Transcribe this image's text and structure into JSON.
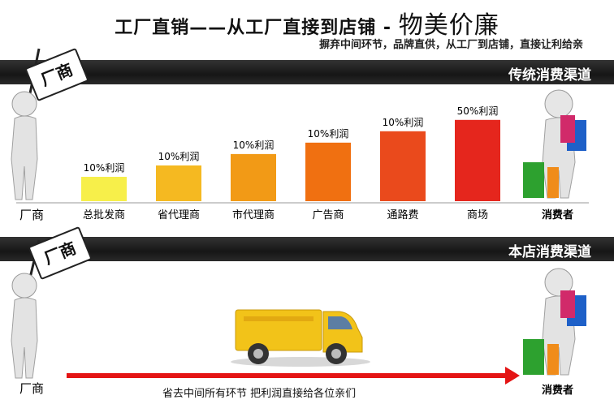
{
  "header": {
    "title_main": "工厂直销——从工厂直接到店铺 - ",
    "title_emphasis": "物美价廉",
    "subtitle": "摒弃中间环节，品牌直供，从工厂到店铺，直接让利给亲"
  },
  "traditional": {
    "band_label": "传统消费渠道",
    "factory_sign": "厂商",
    "factory_label": "厂商",
    "consumer_label": "消费者"
  },
  "direct": {
    "band_label": "本店消费渠道",
    "factory_sign": "厂商",
    "factory_label": "厂商",
    "consumer_label": "消费者",
    "arrow_text": "省去中间所有环节 把利润直接给各位亲们"
  },
  "chart_data": {
    "type": "bar",
    "title": "传统消费渠道",
    "categories": [
      "总批发商",
      "省代理商",
      "市代理商",
      "广告商",
      "通路费",
      "商场"
    ],
    "series": [
      {
        "values": [
          10,
          10,
          10,
          10,
          10,
          50
        ]
      }
    ],
    "data_labels": [
      "10%利润",
      "10%利润",
      "10%利润",
      "10%利润",
      "10%利润",
      "50%利润"
    ],
    "bar_colors": [
      "#f7ef4a",
      "#f5b921",
      "#f29a16",
      "#f07011",
      "#ea4a1c",
      "#e5261d"
    ]
  },
  "colors": {
    "band": "#1b1b1b",
    "arrow": "#e41414",
    "truck_yellow": "#f2c319"
  }
}
